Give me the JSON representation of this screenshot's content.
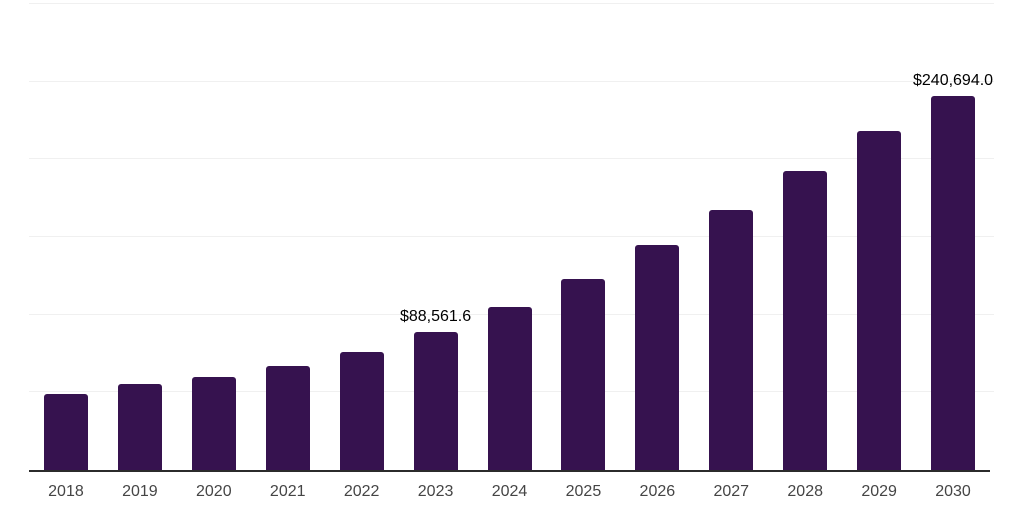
{
  "style": {
    "background": "#ffffff",
    "bar_color": "#36124f",
    "axis_color": "#2b2b2b",
    "gridline_color": "#f0f0f0",
    "tick_label_color": "#454545",
    "data_label_color": "#000000"
  },
  "chart_data": {
    "type": "bar",
    "title": "",
    "xlabel": "",
    "ylabel": "",
    "legend": "none",
    "grid": "horizontal",
    "ylim": [
      0,
      300000
    ],
    "gridline_step": 50000,
    "categories": [
      "2018",
      "2019",
      "2020",
      "2021",
      "2022",
      "2023",
      "2024",
      "2025",
      "2026",
      "2027",
      "2028",
      "2029",
      "2030"
    ],
    "values": [
      48700,
      55200,
      59700,
      66800,
      76200,
      88561.6,
      105100,
      122800,
      144700,
      167400,
      192500,
      218300,
      240694.0
    ],
    "data_labels": [
      "",
      "",
      "",
      "",
      "",
      "$88,561.6",
      "",
      "",
      "",
      "",
      "",
      "",
      "$240,694.0"
    ]
  }
}
